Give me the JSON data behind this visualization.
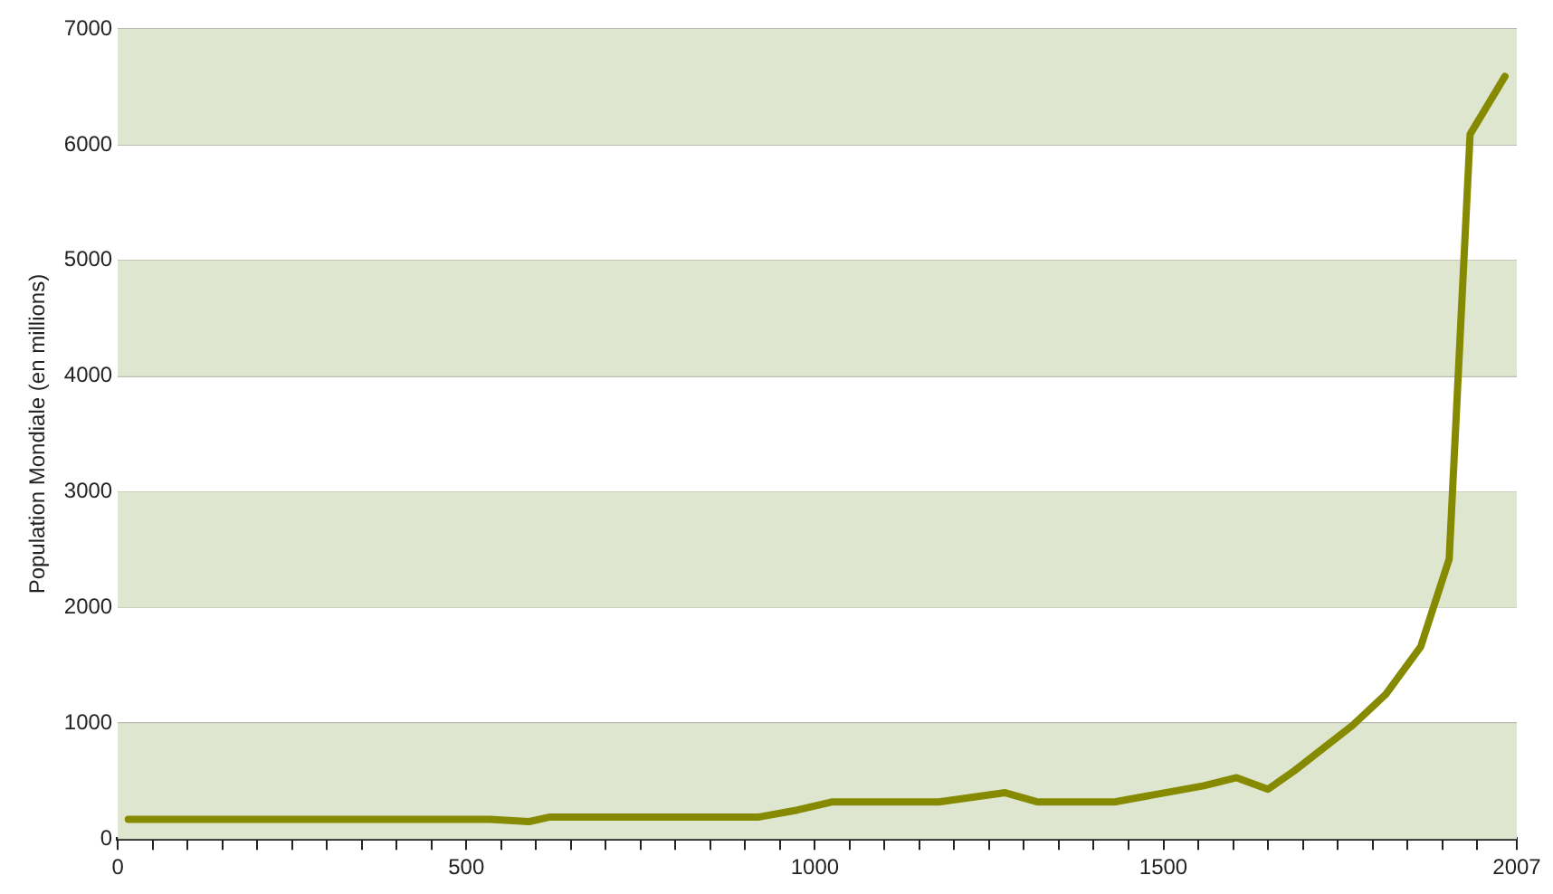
{
  "chart_data": {
    "type": "line",
    "ylabel": "Population Mondiale (en millions)",
    "x": [
      15,
      534,
      590,
      620,
      920,
      975,
      1024,
      1178,
      1273,
      1320,
      1430,
      1558,
      1605,
      1650,
      1688,
      1771,
      1819,
      1869,
      1910,
      1940,
      1990
    ],
    "series": [
      {
        "color": "#858a00",
        "values": [
          170,
          170,
          150,
          190,
          190,
          250,
          320,
          320,
          400,
          320,
          320,
          460,
          530,
          430,
          590,
          980,
          1250,
          1660,
          2420,
          6090,
          6590
        ]
      }
    ],
    "xlim": [
      0,
      2007
    ],
    "ylim": [
      0,
      7000
    ],
    "xticks": [
      0,
      {
        "value": 50,
        "label": null
      },
      {
        "value": 100,
        "label": null
      },
      {
        "value": 150,
        "label": null
      },
      {
        "value": 200,
        "label": null
      },
      {
        "value": 250,
        "label": null
      },
      {
        "value": 300,
        "label": null
      },
      {
        "value": 350,
        "label": null
      },
      {
        "value": 400,
        "label": null
      },
      {
        "value": 450,
        "label": null
      },
      500,
      {
        "value": 550,
        "label": null
      },
      {
        "value": 600,
        "label": null
      },
      {
        "value": 650,
        "label": null
      },
      {
        "value": 700,
        "label": null
      },
      {
        "value": 750,
        "label": null
      },
      {
        "value": 800,
        "label": null
      },
      {
        "value": 850,
        "label": null
      },
      {
        "value": 900,
        "label": null
      },
      {
        "value": 950,
        "label": null
      },
      1000,
      {
        "value": 1050,
        "label": null
      },
      {
        "value": 1100,
        "label": null
      },
      {
        "value": 1150,
        "label": null
      },
      {
        "value": 1200,
        "label": null
      },
      {
        "value": 1250,
        "label": null
      },
      {
        "value": 1300,
        "label": null
      },
      {
        "value": 1350,
        "label": null
      },
      {
        "value": 1400,
        "label": null
      },
      {
        "value": 1450,
        "label": null
      },
      1500,
      {
        "value": 1550,
        "label": null
      },
      {
        "value": 1600,
        "label": null
      },
      {
        "value": 1650,
        "label": null
      },
      {
        "value": 1700,
        "label": null
      },
      {
        "value": 1750,
        "label": null
      },
      {
        "value": 1800,
        "label": null
      },
      {
        "value": 1850,
        "label": null
      },
      {
        "value": 1900,
        "label": null
      },
      {
        "value": 1950,
        "label": null
      },
      2007
    ],
    "yticks": [
      0,
      1000,
      2000,
      3000,
      4000,
      5000,
      6000,
      7000
    ],
    "grid": "y",
    "legend": false,
    "marker": "none",
    "line_style": "solid"
  }
}
